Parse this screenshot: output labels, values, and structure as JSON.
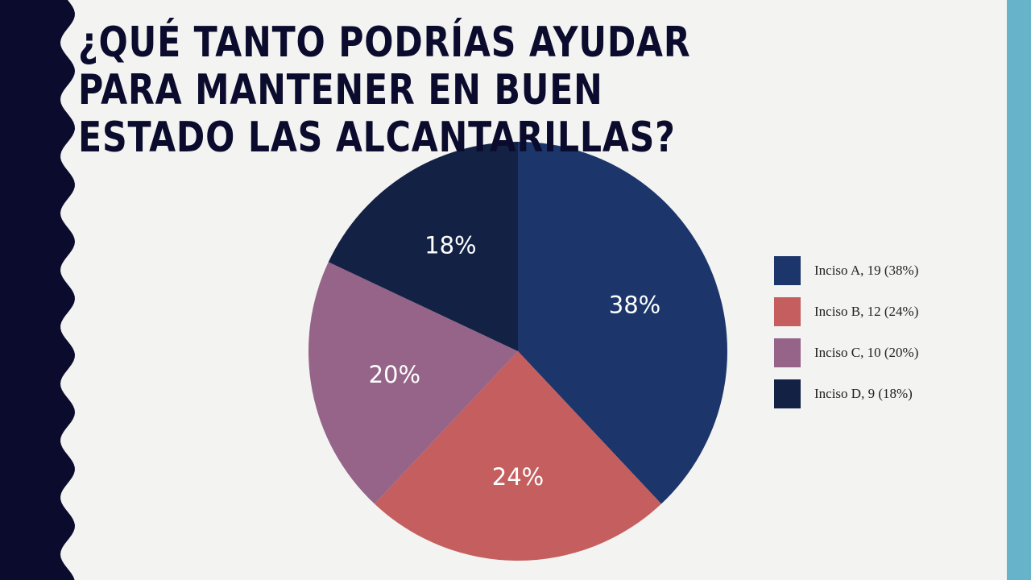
{
  "slide": {
    "title": "¿Qué tanto podrías ayudar para mantener en buen estado las alcantarillas?"
  },
  "chart_data": {
    "type": "pie",
    "title": "",
    "slices": [
      {
        "label": "Inciso A",
        "value": 19,
        "percent_label": "38%",
        "legend": "Inciso A, 19 (38%)",
        "color": "#1c366b",
        "text_color": "#ffffff"
      },
      {
        "label": "Inciso B",
        "value": 12,
        "percent_label": "24%",
        "legend": "Inciso B, 12 (24%)",
        "color": "#c55e5e",
        "text_color": "#ffffff"
      },
      {
        "label": "Inciso C",
        "value": 10,
        "percent_label": "20%",
        "legend": "Inciso C, 10 (20%)",
        "color": "#956488",
        "text_color": "#ffffff"
      },
      {
        "label": "Inciso D",
        "value": 9,
        "percent_label": "18%",
        "legend": "Inciso D, 9 (18%)",
        "color": "#132244",
        "text_color": "#ffffff"
      }
    ],
    "legend_position": "right",
    "data_labels": "percent"
  },
  "colors": {
    "background": "#f3f3f1",
    "left_band": "#0b0b2e",
    "right_band": "#67b3c9",
    "title": "#0b0b2e"
  }
}
